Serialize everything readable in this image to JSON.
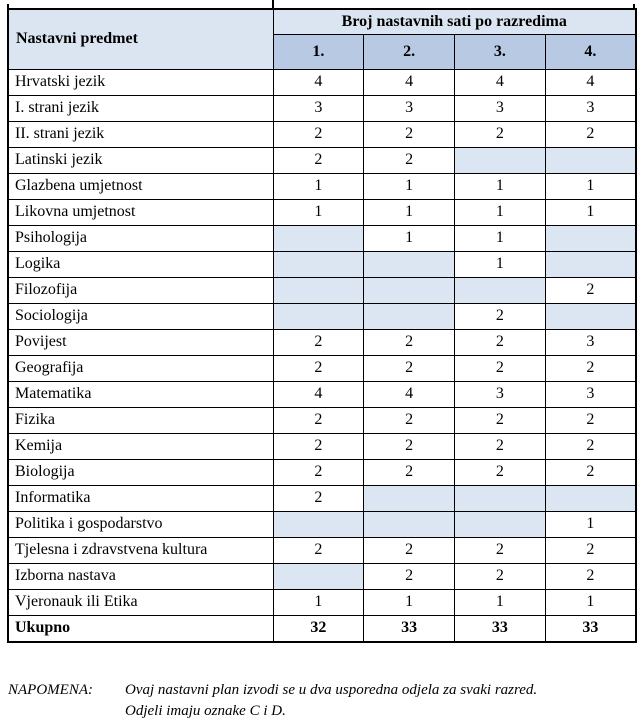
{
  "table": {
    "header": {
      "subject_col": "Nastavni predmet",
      "group_title": "Broj nastavnih sati po razredima",
      "classes": [
        "1.",
        "2.",
        "3.",
        "4."
      ]
    },
    "rows": [
      {
        "subject": "Hrvatski jezik",
        "values": [
          "4",
          "4",
          "4",
          "4"
        ]
      },
      {
        "subject": "I. strani jezik",
        "values": [
          "3",
          "3",
          "3",
          "3"
        ]
      },
      {
        "subject": "II. strani jezik",
        "values": [
          "2",
          "2",
          "2",
          "2"
        ]
      },
      {
        "subject": "Latinski jezik",
        "values": [
          "2",
          "2",
          "",
          ""
        ]
      },
      {
        "subject": "Glazbena umjetnost",
        "values": [
          "1",
          "1",
          "1",
          "1"
        ]
      },
      {
        "subject": "Likovna umjetnost",
        "values": [
          "1",
          "1",
          "1",
          "1"
        ]
      },
      {
        "subject": "Psihologija",
        "values": [
          "",
          "1",
          "1",
          ""
        ]
      },
      {
        "subject": "Logika",
        "values": [
          "",
          "",
          "1",
          ""
        ]
      },
      {
        "subject": "Filozofija",
        "values": [
          "",
          "",
          "",
          "2"
        ]
      },
      {
        "subject": "Sociologija",
        "values": [
          "",
          "",
          "2",
          ""
        ]
      },
      {
        "subject": "Povijest",
        "values": [
          "2",
          "2",
          "2",
          "3"
        ]
      },
      {
        "subject": "Geografija",
        "values": [
          "2",
          "2",
          "2",
          "2"
        ]
      },
      {
        "subject": "Matematika",
        "values": [
          "4",
          "4",
          "3",
          "3"
        ]
      },
      {
        "subject": "Fizika",
        "values": [
          "2",
          "2",
          "2",
          "2"
        ]
      },
      {
        "subject": "Kemija",
        "values": [
          "2",
          "2",
          "2",
          "2"
        ]
      },
      {
        "subject": "Biologija",
        "values": [
          "2",
          "2",
          "2",
          "2"
        ]
      },
      {
        "subject": "Informatika",
        "values": [
          "2",
          "",
          "",
          ""
        ]
      },
      {
        "subject": "Politika i gospodarstvo",
        "values": [
          "",
          "",
          "",
          "1"
        ]
      },
      {
        "subject": "Tjelesna i zdravstvena kultura",
        "values": [
          "2",
          "2",
          "2",
          "2"
        ]
      },
      {
        "subject": "Izborna nastava",
        "values": [
          "",
          "2",
          "2",
          "2"
        ]
      },
      {
        "subject": "Vjeronauk ili Etika",
        "values": [
          "1",
          "1",
          "1",
          "1"
        ]
      }
    ],
    "total": {
      "label": "Ukupno",
      "values": [
        "32",
        "33",
        "33",
        "33"
      ]
    }
  },
  "note": {
    "label": "NAPOMENA:",
    "lines": [
      "Ovaj nastavni plan izvodi se u dva usporedna odjela za svaki razred.",
      "Odjeli imaju oznake C i D."
    ]
  },
  "colors": {
    "header_light_blue": "#dbe5f1",
    "header_medium_blue": "#b7c9e3",
    "empty_cell_blue": "#dce6f2",
    "border_black": "#000000"
  }
}
